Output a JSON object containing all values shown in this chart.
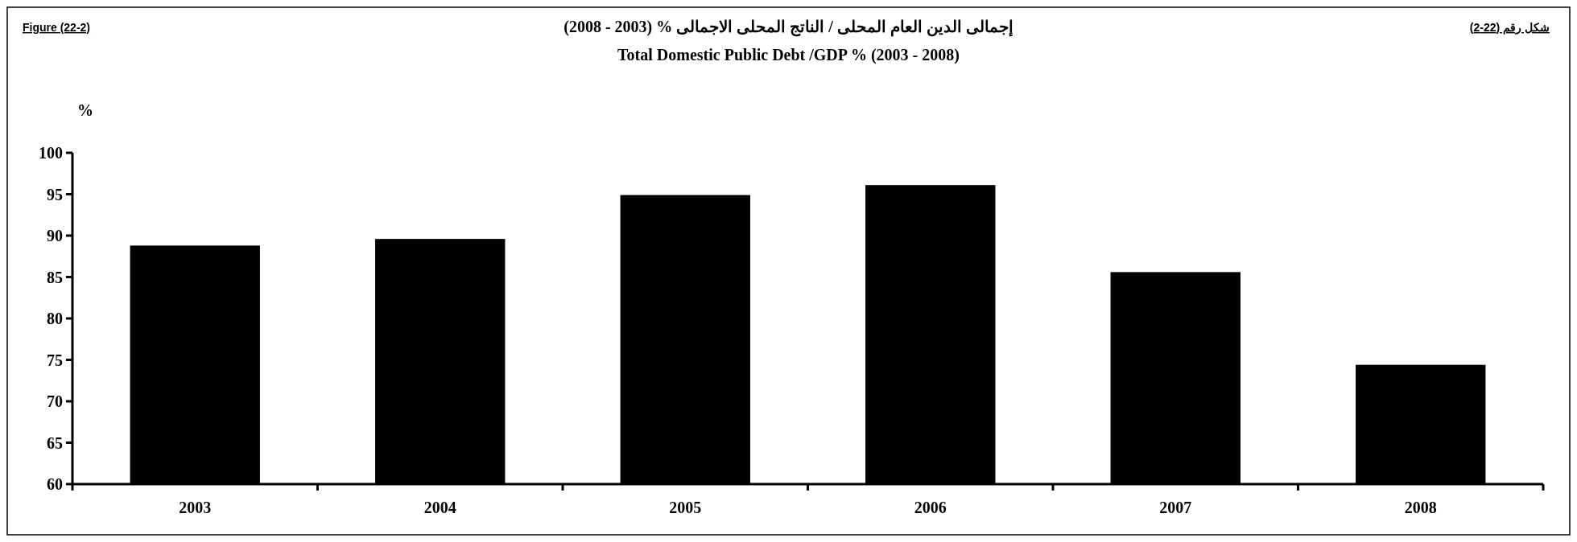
{
  "chart_data": {
    "type": "bar",
    "title": "إجمالى الدين العام المحلى / الناتج المحلى الاجمالى %  (2003 - 2008)",
    "subtitle": "Total Domestic Public Debt /GDP % (2003 - 2008)",
    "ylabel": "%",
    "annotations": [
      "Figure (22-2)",
      "شكل رقم (22-2)"
    ],
    "categories": [
      "2003",
      "2004",
      "2005",
      "2006",
      "2007",
      "2008"
    ],
    "values": [
      88.8,
      89.6,
      94.9,
      96.1,
      85.6,
      74.4
    ],
    "color": "#000000",
    "ylim": [
      60,
      100
    ],
    "yticks": [
      60,
      65,
      70,
      75,
      80,
      85,
      90,
      95,
      100
    ],
    "grid": false
  }
}
